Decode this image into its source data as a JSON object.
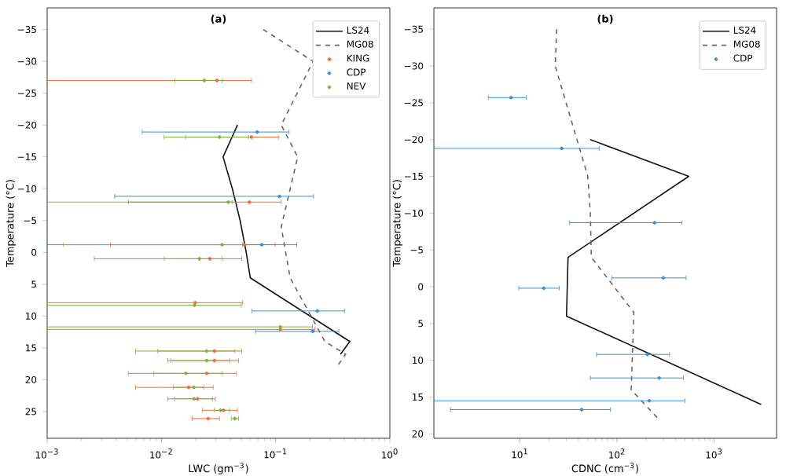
{
  "chart_data": [
    {
      "type": "line",
      "title": "(a)",
      "xlabel": "LWC (gm$^{−3}$)",
      "ylabel": "Temperature (°C)",
      "log": "x",
      "legend": "top right",
      "xlim": [
        0.001,
        1
      ],
      "ylim": [
        29.2,
        -38.4
      ],
      "xticks": [
        {
          "value": 0.001,
          "label": "10$^{−3}$"
        },
        {
          "value": 0.01,
          "label": "10$^{−2}$"
        },
        {
          "value": 0.1,
          "label": "10$^{−1}$"
        },
        {
          "value": 1,
          "label": "10$^{0}$"
        }
      ],
      "yticks": [
        {
          "value": -35,
          "label": "−35"
        },
        {
          "value": -30,
          "label": "−30"
        },
        {
          "value": -25,
          "label": "−25"
        },
        {
          "value": -20,
          "label": "−20"
        },
        {
          "value": -15,
          "label": "−15"
        },
        {
          "value": -10,
          "label": "−10"
        },
        {
          "value": -5,
          "label": "−5"
        },
        0,
        5,
        10,
        15,
        20,
        25
      ],
      "series": [
        {
          "name": "LS24",
          "color": "#111111",
          "marker": "none",
          "line_style": "solid",
          "x": [
            0.0464,
            0.0347,
            0.0418,
            0.0489,
            0.0553,
            0.06,
            0.446,
            0.37
          ],
          "values": [
            -20,
            -15,
            -10,
            -5,
            0,
            4,
            14,
            16
          ]
        },
        {
          "name": "MG08",
          "color": "#666666",
          "marker": "none",
          "line_style": "dashed",
          "x": [
            0.078,
            0.213,
            0.112,
            0.156,
            0.112,
            0.134,
            0.27,
            0.41,
            0.343
          ],
          "values": [
            -35,
            -30,
            -20,
            -15,
            -4,
            4,
            14,
            16,
            18
          ]
        },
        {
          "name": "KING",
          "type": "scatter",
          "color": "#f26b3a",
          "marker": "circle",
          "x": [
            0.0306,
            0.0614,
            0.0589,
            0.053,
            0.0265,
            0.0198,
            0.11,
            0.0291,
            0.0291,
            0.0249,
            0.0173,
            0.0207,
            0.035,
            0.0257
          ],
          "values": [
            -27.0,
            -18.1,
            -7.9,
            -1.2,
            1.0,
            7.9,
            12.1,
            15.5,
            17.0,
            19.0,
            21.2,
            23.0,
            24.8,
            26.1
          ],
          "xerrors": [
            [
              0.001,
              0.0614
            ],
            [
              0.0163,
              0.106
            ],
            [
              0.00514,
              0.112
            ],
            [
              0.00358,
              0.0989
            ],
            [
              0.00259,
              0.0505
            ],
            [
              0.001,
              0.0514
            ],
            [
              0.001,
              0.22
            ],
            [
              0.0093,
              0.0505
            ],
            [
              0.0114,
              0.0474
            ],
            [
              0.00514,
              0.0454
            ],
            [
              0.00594,
              0.0284
            ],
            [
              0.0114,
              0.0297
            ],
            [
              0.0229,
              0.0463
            ],
            [
              0.0186,
              0.0322
            ]
          ]
        },
        {
          "name": "CDP",
          "type": "scatter",
          "color": "#3b8fd4",
          "marker": "circle",
          "x": [
            0.0689,
            0.108,
            0.0755,
            0.232,
            0.211
          ],
          "values": [
            -18.9,
            -8.8,
            -1.2,
            9.2,
            12.4
          ],
          "xerrors": [
            [
              0.0068,
              0.131
            ],
            [
              0.0039,
              0.215
            ],
            [
              0.001,
              0.153
            ],
            [
              0.0619,
              0.401
            ],
            [
              0.0667,
              0.358
            ]
          ]
        },
        {
          "name": "NEV",
          "type": "scatter",
          "color": "#7cb342",
          "marker": "circle",
          "x": [
            0.0237,
            0.0323,
            0.0385,
            0.034,
            0.0215,
            0.0195,
            0.11,
            0.0249,
            0.0249,
            0.0164,
            0.0192,
            0.0193,
            0.033,
            0.044
          ],
          "values": [
            -27.0,
            -18.1,
            -7.9,
            -1.2,
            1.0,
            8.3,
            11.7,
            15.5,
            17.0,
            19.0,
            21.2,
            23.0,
            24.8,
            26.1
          ],
          "xerrors": [
            [
              0.0131,
              0.034
            ],
            [
              0.0105,
              0.058
            ],
            [
              0.001,
              0.0419
            ],
            [
              0.00139,
              0.0514
            ],
            [
              0.0106,
              0.034
            ],
            [
              0.001,
              0.05
            ],
            [
              0.001,
              0.21
            ],
            [
              0.00594,
              0.044
            ],
            [
              0.0121,
              0.0397
            ],
            [
              0.0086,
              0.034
            ],
            [
              0.0127,
              0.0236
            ],
            [
              0.013,
              0.028
            ],
            [
              0.0291,
              0.0397
            ],
            [
              0.0409,
              0.0474
            ]
          ]
        }
      ]
    },
    {
      "type": "line",
      "title": "(b)",
      "xlabel": "CDNC (cm$^{−3}$)",
      "ylabel": "Temperature (°C)",
      "log": "x",
      "legend": "top right",
      "xlim": [
        1.3,
        4400
      ],
      "ylim": [
        20.6,
        -37.9
      ],
      "xticks": [
        {
          "value": 10,
          "label": "10$^{1}$"
        },
        {
          "value": 100,
          "label": "10$^{2}$"
        },
        {
          "value": 1000,
          "label": "10$^{3}$"
        }
      ],
      "yticks": [
        {
          "value": -35,
          "label": "−35"
        },
        {
          "value": -30,
          "label": "−30"
        },
        {
          "value": -25,
          "label": "−25"
        },
        {
          "value": -20,
          "label": "−20"
        },
        {
          "value": -15,
          "label": "−15"
        },
        {
          "value": -10,
          "label": "−10"
        },
        {
          "value": -5,
          "label": "−5"
        },
        0,
        5,
        10,
        15,
        20
      ],
      "series": [
        {
          "name": "LS24",
          "color": "#111111",
          "marker": "none",
          "line_style": "solid",
          "x": [
            53.1,
            548,
            31.3,
            30.2,
            3054
          ],
          "values": [
            -20,
            -15,
            -4,
            4,
            16
          ]
        },
        {
          "name": "MG08",
          "color": "#666666",
          "marker": "none",
          "line_style": "dashed",
          "x": [
            23.9,
            23.1,
            50.0,
            53.1,
            54.4,
            149,
            140,
            268
          ],
          "values": [
            -35,
            -30,
            -15,
            -10,
            -4,
            3.5,
            14,
            18
          ]
        },
        {
          "name": "CDP",
          "type": "scatter",
          "color": "#3b8fd4",
          "marker": "circle",
          "x": [
            8.1,
            27.0,
            244,
            300,
            17.6,
            205,
            272,
            215,
            43.2
          ],
          "values": [
            -25.7,
            -18.8,
            -8.7,
            -1.2,
            0.2,
            9.2,
            12.4,
            15.5,
            16.7
          ],
          "xerrors": [
            [
              4.73,
              11.6
            ],
            [
              1.3,
              65.5
            ],
            [
              32.5,
              467
            ],
            [
              88.9,
              515
            ],
            [
              9.75,
              25.4
            ],
            [
              61.5,
              347
            ],
            [
              53.1,
              484
            ],
            [
              1.3,
              502
            ],
            [
              1.93,
              85.7
            ]
          ]
        }
      ]
    }
  ]
}
